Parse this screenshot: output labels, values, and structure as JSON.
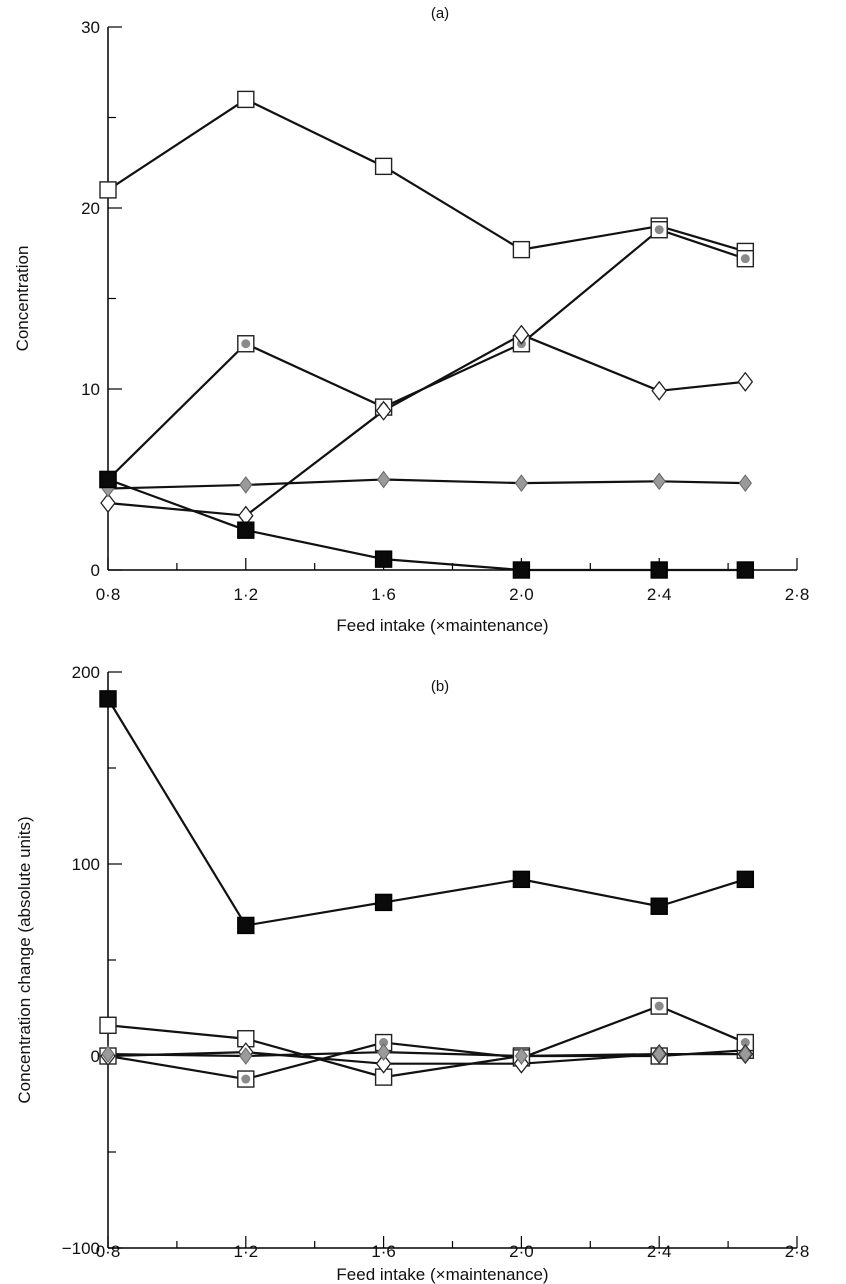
{
  "chart_data": [
    {
      "type": "line",
      "panel_label": "(a)",
      "xlabel": "Feed intake (×maintenance)",
      "ylabel": "Concentration",
      "xlim": [
        0.8,
        2.8
      ],
      "ylim": [
        0,
        30
      ],
      "x_ticks": [
        "0·8",
        "1·2",
        "1·6",
        "2·0",
        "2·4",
        "2·8"
      ],
      "y_ticks": [
        "0",
        "10",
        "20",
        "30"
      ],
      "series": [
        {
          "marker": "open-square",
          "x": [
            0.8,
            1.2,
            1.6,
            2.0,
            2.4,
            2.65
          ],
          "y": [
            21,
            26,
            22.3,
            17.7,
            19,
            17.6
          ]
        },
        {
          "marker": "dotted-square",
          "x": [
            0.8,
            1.2,
            1.6,
            2.0,
            2.4,
            2.65
          ],
          "y": [
            5,
            12.5,
            9,
            12.5,
            18.8,
            17.2
          ]
        },
        {
          "marker": "open-diamond",
          "x": [
            0.8,
            1.2,
            1.6,
            2.0,
            2.4,
            2.65
          ],
          "y": [
            3.7,
            3,
            8.8,
            13,
            9.9,
            10.4
          ]
        },
        {
          "marker": "grey-diamond",
          "x": [
            0.8,
            1.2,
            1.6,
            2.0,
            2.4,
            2.65
          ],
          "y": [
            4.5,
            4.7,
            5,
            4.8,
            4.9,
            4.8
          ]
        },
        {
          "marker": "filled-square",
          "x": [
            0.8,
            1.2,
            1.6,
            2.0,
            2.4,
            2.65
          ],
          "y": [
            5,
            2.2,
            0.6,
            0,
            0,
            0
          ]
        }
      ]
    },
    {
      "type": "line",
      "panel_label": "(b)",
      "xlabel": "Feed intake (×maintenance)",
      "ylabel": "Concentration change (absolute units)",
      "xlim": [
        0.8,
        2.8
      ],
      "ylim": [
        -100,
        200
      ],
      "x_ticks": [
        "0·8",
        "1·2",
        "1·6",
        "2·0",
        "2·4",
        "2·8"
      ],
      "y_ticks": [
        "−100",
        "0",
        "100",
        "200"
      ],
      "series": [
        {
          "marker": "filled-square",
          "x": [
            0.8,
            1.2,
            1.6,
            2.0,
            2.4,
            2.65
          ],
          "y": [
            186,
            68,
            80,
            92,
            78,
            92
          ]
        },
        {
          "marker": "open-square",
          "x": [
            0.8,
            1.2,
            1.6,
            2.0,
            2.4,
            2.65
          ],
          "y": [
            16,
            9,
            -11,
            0,
            0,
            3
          ]
        },
        {
          "marker": "dotted-square",
          "x": [
            0.8,
            1.2,
            1.6,
            2.0,
            2.4,
            2.65
          ],
          "y": [
            0,
            -12,
            7,
            -1,
            26,
            7
          ]
        },
        {
          "marker": "open-diamond",
          "x": [
            0.8,
            1.2,
            1.6,
            2.0,
            2.4,
            2.65
          ],
          "y": [
            0,
            2,
            -4,
            -4,
            1,
            1
          ]
        },
        {
          "marker": "grey-diamond",
          "x": [
            0.8,
            1.2,
            1.6,
            2.0,
            2.4,
            2.65
          ],
          "y": [
            1,
            0,
            2,
            0,
            1,
            1
          ]
        }
      ]
    }
  ]
}
